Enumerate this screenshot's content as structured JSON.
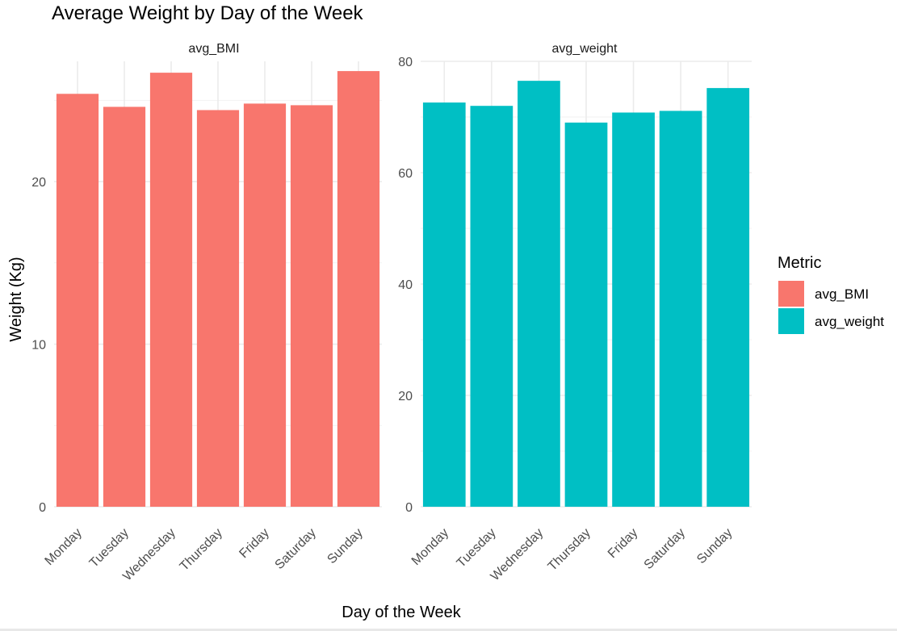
{
  "chart_data": {
    "type": "bar",
    "title": "Average Weight by Day of the Week",
    "xlabel": "Day of the Week",
    "ylabel": "Weight (Kg)",
    "categories": [
      "Monday",
      "Tuesday",
      "Wednesday",
      "Thursday",
      "Friday",
      "Saturday",
      "Sunday"
    ],
    "facet_scales": "free_y",
    "grid": true,
    "legend": {
      "title": "Metric",
      "position": "right",
      "entries": [
        {
          "name": "avg_BMI",
          "color": "#F8766D"
        },
        {
          "name": "avg_weight",
          "color": "#00BFC4"
        }
      ]
    },
    "panels": [
      {
        "name": "avg_BMI",
        "color": "#F8766D",
        "ylim": [
          0,
          27.4
        ],
        "yticks": [
          0,
          10,
          20
        ],
        "values": [
          25.4,
          24.6,
          26.7,
          24.4,
          24.8,
          24.7,
          26.8
        ]
      },
      {
        "name": "avg_weight",
        "color": "#00BFC4",
        "ylim": [
          0,
          80
        ],
        "yticks": [
          0,
          20,
          40,
          60,
          80
        ],
        "values": [
          72.6,
          72.0,
          76.5,
          69.0,
          70.8,
          71.1,
          75.2
        ]
      }
    ]
  }
}
